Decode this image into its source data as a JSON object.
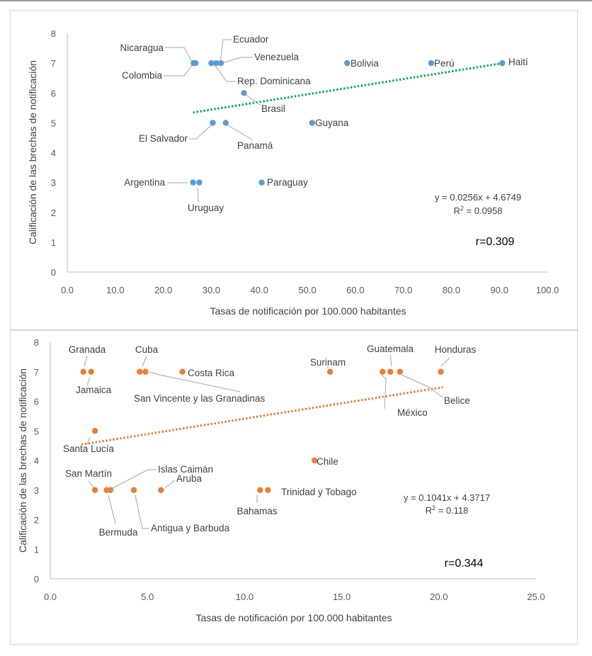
{
  "chart_data": [
    {
      "type": "scatter",
      "color": "#5b9bd5",
      "trend_color": "#00b050",
      "xlabel": "Tasas de notificación por 100.000 habitantes",
      "ylabel": "Calificación de las brechas de notificación",
      "xlim": [
        0,
        100
      ],
      "ylim": [
        0,
        8
      ],
      "xticks": [
        "0.0",
        "10.0",
        "20.0",
        "30.0",
        "40.0",
        "50.0",
        "60.0",
        "70.0",
        "80.0",
        "90.0",
        "100.0"
      ],
      "yticks": [
        "0",
        "1",
        "2",
        "3",
        "4",
        "5",
        "6",
        "7",
        "8"
      ],
      "grid": false,
      "points": [
        {
          "label": "Nicaragua",
          "x": 26.3,
          "y": 7
        },
        {
          "label": "Colombia",
          "x": 26.7,
          "y": 7
        },
        {
          "label": "Ecuador",
          "x": 31.0,
          "y": 7
        },
        {
          "label": "Venezuela",
          "x": 32.0,
          "y": 7
        },
        {
          "label": "Rep. Dominicana",
          "x": 30.0,
          "y": 7
        },
        {
          "label": "Bolivia",
          "x": 58.3,
          "y": 7
        },
        {
          "label": "Perú",
          "x": 75.8,
          "y": 7
        },
        {
          "label": "Haití",
          "x": 90.6,
          "y": 7
        },
        {
          "label": "Brasil",
          "x": 36.8,
          "y": 6
        },
        {
          "label": "El Salvador",
          "x": 30.3,
          "y": 5
        },
        {
          "label": "Panamá",
          "x": 33.0,
          "y": 5
        },
        {
          "label": "Guyana",
          "x": 51.0,
          "y": 5
        },
        {
          "label": "Argentina",
          "x": 26.2,
          "y": 3
        },
        {
          "label": "Uruguay",
          "x": 27.5,
          "y": 3
        },
        {
          "label": "Paraguay",
          "x": 40.5,
          "y": 3
        }
      ],
      "trendline": {
        "slope": 0.0256,
        "intercept": 4.6749,
        "x_range": [
          26.2,
          90.6
        ]
      },
      "equation": "y = 0.0256x + 4.6749",
      "r2_prefix": "R",
      "r2_suffix": " = 0.0958",
      "r_text": "r=0.309"
    },
    {
      "type": "scatter",
      "color": "#ed7d31",
      "trend_color": "#ed7d31",
      "xlabel": "Tasas de notificación por 100.000 habitantes",
      "ylabel": "Calificación de las brechas de notificación",
      "xlim": [
        0,
        25
      ],
      "ylim": [
        0,
        8
      ],
      "xticks": [
        "0.0",
        "5.0",
        "10.0",
        "15.0",
        "20.0",
        "25.0"
      ],
      "yticks": [
        "0",
        "1",
        "2",
        "3",
        "4",
        "5",
        "6",
        "7",
        "8"
      ],
      "grid": false,
      "points": [
        {
          "label": "Granada",
          "x": 1.7,
          "y": 7
        },
        {
          "label": "Jamaica",
          "x": 2.1,
          "y": 7
        },
        {
          "label": "Cuba",
          "x": 4.6,
          "y": 7
        },
        {
          "label": "San Vincente y las Granadinas",
          "x": 4.9,
          "y": 7
        },
        {
          "label": "Costa Rica",
          "x": 6.8,
          "y": 7
        },
        {
          "label": "Surinam",
          "x": 14.4,
          "y": 7
        },
        {
          "label": "Guatemala",
          "x": 17.5,
          "y": 7
        },
        {
          "label": "México",
          "x": 17.1,
          "y": 7
        },
        {
          "label": "Belice",
          "x": 18.0,
          "y": 7
        },
        {
          "label": "Honduras",
          "x": 20.1,
          "y": 7
        },
        {
          "label": "Santa Lucía",
          "x": 2.3,
          "y": 5
        },
        {
          "label": "Chile",
          "x": 13.6,
          "y": 4
        },
        {
          "label": "San Martín",
          "x": 2.3,
          "y": 3
        },
        {
          "label": "Islas Caimán",
          "x": 3.1,
          "y": 3
        },
        {
          "label": "Bermuda",
          "x": 2.9,
          "y": 3
        },
        {
          "label": "Antigua y Barbuda",
          "x": 4.3,
          "y": 3
        },
        {
          "label": "Aruba",
          "x": 5.7,
          "y": 3
        },
        {
          "label": "Bahamas",
          "x": 10.8,
          "y": 3
        },
        {
          "label": "Trinidad y Tobago",
          "x": 11.2,
          "y": 3
        }
      ],
      "trendline": {
        "slope": 0.1041,
        "intercept": 4.3717,
        "x_range": [
          1.6,
          20.2
        ]
      },
      "equation": "y = 0.1041x + 4.3717",
      "r2_prefix": "R",
      "r2_suffix": " = 0.118",
      "r_text": "r=0.344"
    }
  ]
}
